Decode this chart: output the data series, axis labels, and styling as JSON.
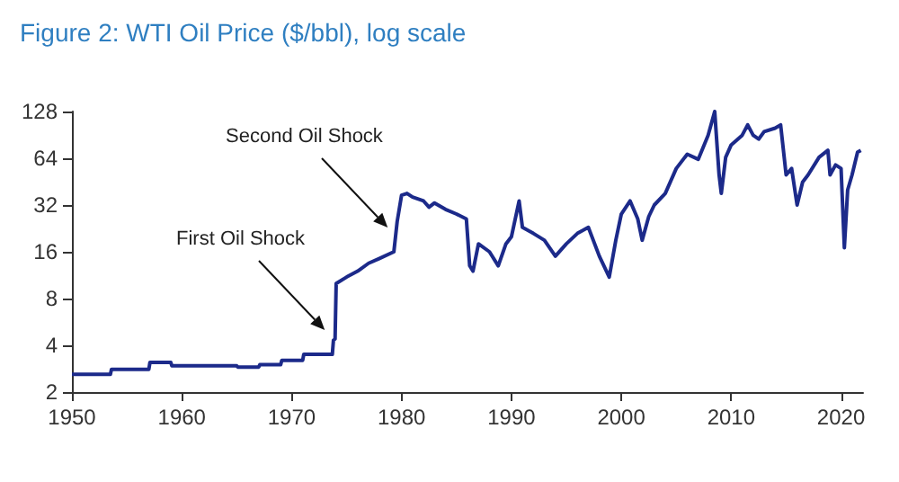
{
  "chart_data": {
    "type": "line",
    "title": "Figure 2: WTI Oil Price ($/bbl), log scale",
    "annotations": [
      "First Oil Shock",
      "Second Oil Shock"
    ],
    "log": "y",
    "grid": false,
    "marker": "none",
    "line_style": "solid",
    "xlim": [
      1950,
      2022
    ],
    "xticks": [
      1950,
      1960,
      1970,
      1980,
      1990,
      2000,
      2010,
      2020
    ],
    "ylim": [
      2,
      128
    ],
    "yticks": [
      2,
      4,
      8,
      16,
      32,
      64,
      128
    ],
    "series": [
      {
        "color": "#1c2a8a",
        "x": [
          1950,
          1953.5,
          1953.6,
          1957,
          1957.1,
          1959,
          1959.1,
          1965,
          1965.1,
          1967,
          1967.1,
          1969,
          1969.1,
          1971,
          1971.1,
          1973.7,
          1973.8,
          1973.95,
          1974.05,
          1975,
          1976,
          1977,
          1978,
          1979.3,
          1979.6,
          1980,
          1980.5,
          1981,
          1982,
          1982.5,
          1983,
          1984,
          1985,
          1985.9,
          1986.2,
          1986.5,
          1987,
          1988,
          1988.8,
          1989.5,
          1990,
          1990.7,
          1991,
          1992,
          1993,
          1994,
          1995,
          1996,
          1997,
          1998,
          1998.9,
          1999.5,
          2000,
          2000.8,
          2001.5,
          2001.9,
          2002.5,
          2003,
          2004,
          2005,
          2006,
          2007,
          2007.9,
          2008.5,
          2008.9,
          2009.1,
          2009.5,
          2010,
          2011,
          2011.5,
          2012,
          2012.5,
          2013,
          2014,
          2014.5,
          2015,
          2015.5,
          2016,
          2016.5,
          2017,
          2018,
          2018.8,
          2019,
          2019.5,
          2020,
          2020.3,
          2020.6,
          2021,
          2021.5,
          2021.8
        ],
        "values": [
          2.6,
          2.6,
          2.8,
          2.8,
          3.1,
          3.1,
          2.95,
          2.95,
          2.9,
          2.9,
          3.0,
          3.0,
          3.2,
          3.2,
          3.5,
          3.5,
          4.3,
          4.4,
          10,
          11,
          12,
          13.5,
          14.5,
          16,
          25,
          37,
          38,
          36,
          34,
          31,
          33,
          30,
          28,
          26,
          13,
          12,
          18,
          16,
          13,
          18,
          20,
          34,
          23,
          21,
          19,
          15,
          18,
          21,
          23,
          15,
          11,
          19,
          28,
          34,
          26,
          19,
          27,
          32,
          38,
          55,
          68,
          63,
          90,
          128,
          50,
          38,
          65,
          78,
          90,
          105,
          90,
          85,
          95,
          100,
          105,
          50,
          55,
          32,
          45,
          50,
          65,
          72,
          50,
          58,
          55,
          17,
          40,
          50,
          70,
          72
        ]
      }
    ]
  }
}
